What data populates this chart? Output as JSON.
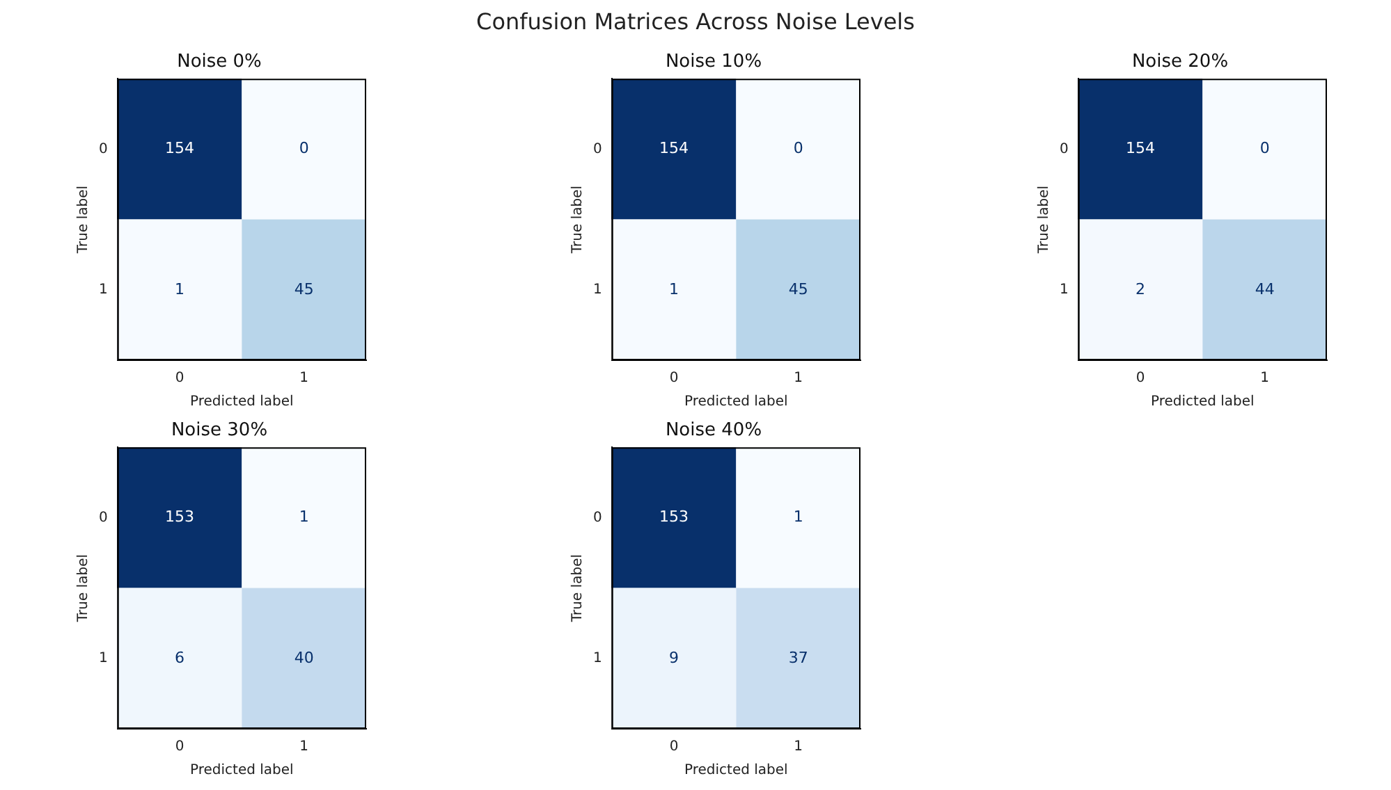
{
  "chart_data": [
    {
      "type": "other",
      "title": "Confusion Matrices Across Noise Levels"
    },
    {
      "type": "heatmap",
      "title": "Noise 0%",
      "xlabel": "Predicted label",
      "ylabel": "True label",
      "categories": [
        "0",
        "1"
      ],
      "y_categories": [
        "0",
        "1"
      ],
      "cells": [
        [
          154,
          0
        ],
        [
          1,
          45
        ]
      ],
      "data_labels": true
    },
    {
      "type": "heatmap",
      "title": "Noise 10%",
      "xlabel": "Predicted label",
      "ylabel": "True label",
      "categories": [
        "0",
        "1"
      ],
      "y_categories": [
        "0",
        "1"
      ],
      "cells": [
        [
          154,
          0
        ],
        [
          1,
          45
        ]
      ],
      "data_labels": true
    },
    {
      "type": "heatmap",
      "title": "Noise 20%",
      "xlabel": "Predicted label",
      "ylabel": "True label",
      "categories": [
        "0",
        "1"
      ],
      "y_categories": [
        "0",
        "1"
      ],
      "cells": [
        [
          154,
          0
        ],
        [
          2,
          44
        ]
      ],
      "data_labels": true
    },
    {
      "type": "heatmap",
      "title": "Noise 30%",
      "xlabel": "Predicted label",
      "ylabel": "True label",
      "categories": [
        "0",
        "1"
      ],
      "y_categories": [
        "0",
        "1"
      ],
      "cells": [
        [
          153,
          1
        ],
        [
          6,
          40
        ]
      ],
      "data_labels": true
    },
    {
      "type": "heatmap",
      "title": "Noise 40%",
      "xlabel": "Predicted label",
      "ylabel": "True label",
      "categories": [
        "0",
        "1"
      ],
      "y_categories": [
        "0",
        "1"
      ],
      "cells": [
        [
          153,
          1
        ],
        [
          9,
          37
        ]
      ],
      "data_labels": true
    }
  ]
}
